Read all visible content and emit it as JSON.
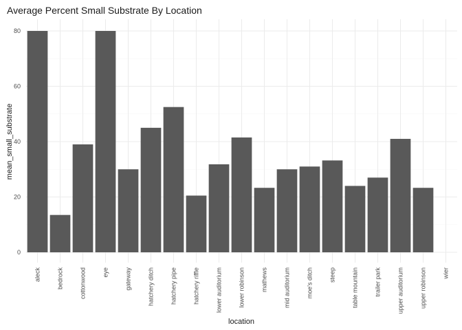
{
  "chart_data": {
    "type": "bar",
    "title": "Average Percent Small Substrate By Location",
    "xlabel": "location",
    "ylabel": "mean_small_substrate",
    "ylim": [
      0,
      80
    ],
    "yticks": [
      0,
      20,
      40,
      60,
      80
    ],
    "grid": true,
    "legend": "none",
    "bar_color": "#595959",
    "categories": [
      "aleck",
      "bedrock",
      "cottonwood",
      "eye",
      "gateway",
      "hatchery ditch",
      "hatchery pipe",
      "hatchery riffle",
      "lower auditorium",
      "lower robinson",
      "mathews",
      "mid auditorium",
      "moe's ditch",
      "steep",
      "table mountain",
      "trailer park",
      "upper auditorium",
      "upper robinson",
      "wier"
    ],
    "values": [
      80,
      13.5,
      39,
      80,
      30,
      45,
      52.5,
      20.5,
      31.8,
      41.5,
      23.3,
      30,
      31,
      33.2,
      24,
      27,
      41,
      23.3,
      null
    ]
  }
}
